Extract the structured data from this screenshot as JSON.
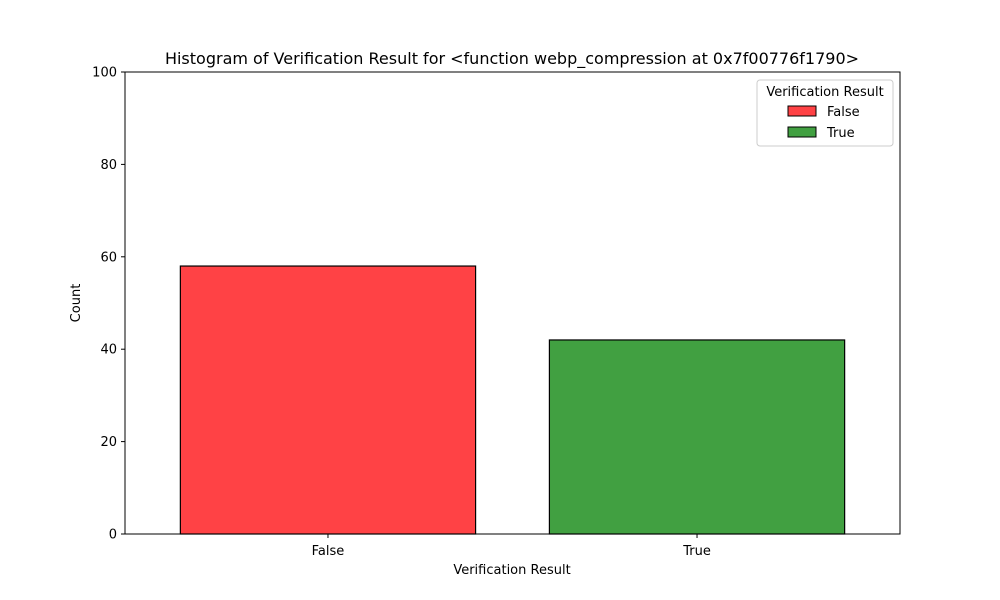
{
  "chart_data": {
    "type": "bar",
    "title": "Histogram of Verification Result for <function webp_compression at 0x7f00776f1790>",
    "xlabel": "Verification Result",
    "ylabel": "Count",
    "categories": [
      "False",
      "True"
    ],
    "values": [
      58,
      42
    ],
    "colors": [
      "#ff4245",
      "#41a041"
    ],
    "edge_color": "#000000",
    "ylim": [
      0,
      100
    ],
    "yticks": [
      0,
      20,
      40,
      60,
      80,
      100
    ],
    "grid": false,
    "legend": {
      "title": "Verification Result",
      "position": "top-right",
      "entries": [
        {
          "label": "False",
          "color": "#ff4245"
        },
        {
          "label": "True",
          "color": "#41a041"
        }
      ]
    }
  }
}
